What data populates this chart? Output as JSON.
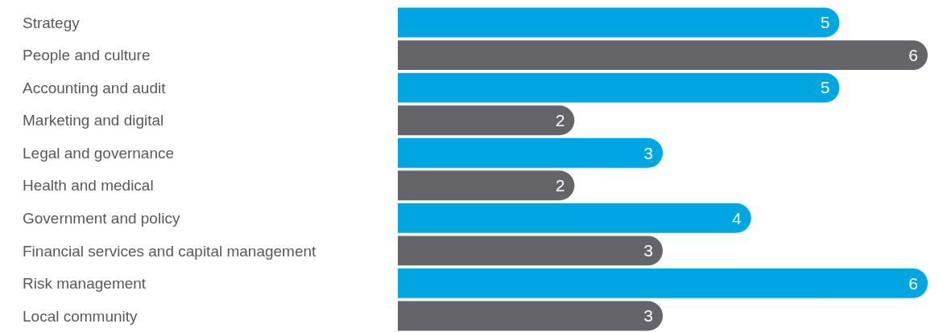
{
  "chart_data": {
    "type": "bar",
    "orientation": "horizontal",
    "categories": [
      "Strategy",
      "People and culture",
      "Accounting and audit",
      "Marketing and digital",
      "Legal and governance",
      "Health and medical",
      "Government and policy",
      "Financial services and capital management",
      "Risk management",
      "Local community"
    ],
    "values": [
      5,
      6,
      5,
      2,
      3,
      2,
      4,
      3,
      6,
      3
    ],
    "colors": [
      "#00a6e2",
      "#656469",
      "#00a6e2",
      "#656469",
      "#00a6e2",
      "#656469",
      "#00a6e2",
      "#656469",
      "#00a6e2",
      "#656469"
    ],
    "data_labels": true
  }
}
